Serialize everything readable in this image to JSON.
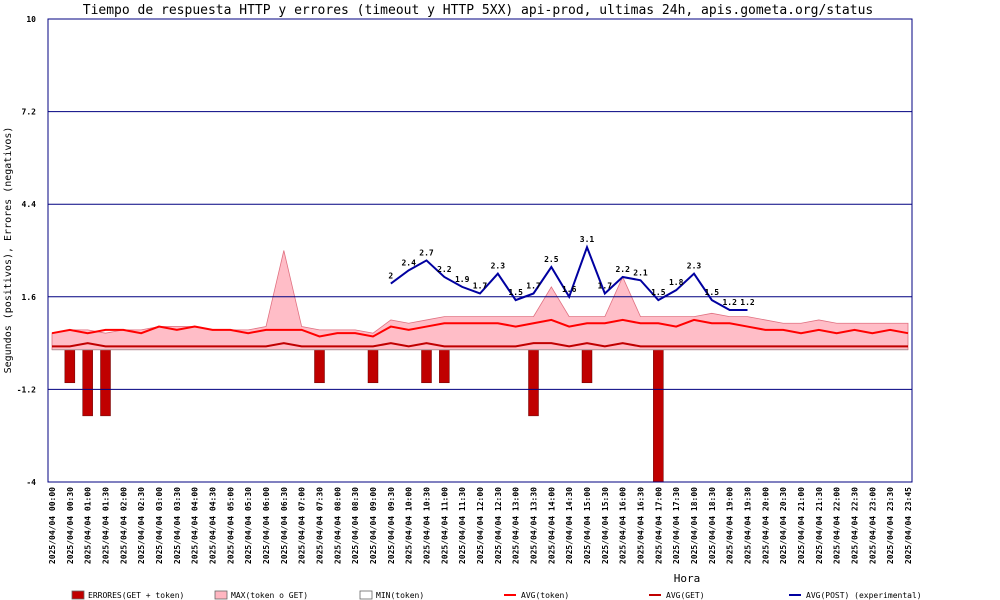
{
  "chart_data": {
    "type": "combo",
    "title": "Tiempo de respuesta HTTP y errores (timeout y HTTP 5XX) api-prod, ultimas 24h, apis.gometa.org/status",
    "x_label": "Hora",
    "y_label": "Segundos (positivos), Errores (negativos)",
    "ylim": [
      -4,
      10
    ],
    "yticks": [
      -4,
      -1.2,
      1.6,
      4.4,
      7.2,
      10
    ],
    "grid": true,
    "categories": [
      "2025/04/04 00:00",
      "2025/04/04 00:30",
      "2025/04/04 01:00",
      "2025/04/04 01:30",
      "2025/04/04 02:00",
      "2025/04/04 02:30",
      "2025/04/04 03:00",
      "2025/04/04 03:30",
      "2025/04/04 04:00",
      "2025/04/04 04:30",
      "2025/04/04 05:00",
      "2025/04/04 05:30",
      "2025/04/04 06:00",
      "2025/04/04 06:30",
      "2025/04/04 07:00",
      "2025/04/04 07:30",
      "2025/04/04 08:00",
      "2025/04/04 08:30",
      "2025/04/04 09:00",
      "2025/04/04 09:30",
      "2025/04/04 10:00",
      "2025/04/04 10:30",
      "2025/04/04 11:00",
      "2025/04/04 11:30",
      "2025/04/04 12:00",
      "2025/04/04 12:30",
      "2025/04/04 13:00",
      "2025/04/04 13:30",
      "2025/04/04 14:00",
      "2025/04/04 14:30",
      "2025/04/04 15:00",
      "2025/04/04 15:30",
      "2025/04/04 16:00",
      "2025/04/04 16:30",
      "2025/04/04 17:00",
      "2025/04/04 17:30",
      "2025/04/04 18:00",
      "2025/04/04 18:30",
      "2025/04/04 19:00",
      "2025/04/04 19:30",
      "2025/04/04 20:00",
      "2025/04/04 20:30",
      "2025/04/04 21:00",
      "2025/04/04 21:30",
      "2025/04/04 22:00",
      "2025/04/04 22:30",
      "2025/04/04 23:00",
      "2025/04/04 23:30",
      "2025/04/04 23:45"
    ],
    "series": [
      {
        "name": "ERRORES(GET + token)",
        "type": "bar",
        "color": "#c00000",
        "values": [
          0,
          -1,
          -2,
          -2,
          0,
          0,
          0,
          0,
          0,
          0,
          0,
          0,
          0,
          0,
          0,
          -1,
          0,
          0,
          -1,
          0,
          0,
          -1,
          -1,
          0,
          0,
          0,
          0,
          -2,
          0,
          0,
          -1,
          0,
          0,
          0,
          -4,
          0,
          0,
          0,
          0,
          0,
          0,
          0,
          0,
          0,
          0,
          0,
          0,
          0,
          0
        ]
      },
      {
        "name": "MAX(token o GET)",
        "type": "area",
        "color": "#ffb6c1",
        "values": [
          0.5,
          0.6,
          0.6,
          0.5,
          0.6,
          0.6,
          0.7,
          0.7,
          0.7,
          0.6,
          0.6,
          0.6,
          0.7,
          3,
          0.7,
          0.6,
          0.6,
          0.6,
          0.5,
          0.9,
          0.8,
          0.9,
          1,
          1,
          1,
          1,
          1,
          1,
          1.9,
          1,
          1,
          1,
          2.2,
          1,
          1,
          1,
          1,
          1.1,
          1,
          1,
          0.9,
          0.8,
          0.8,
          0.9,
          0.8,
          0.8,
          0.8,
          0.8,
          0.8
        ]
      },
      {
        "name": "MIN(token)",
        "type": "area",
        "color": "#ffffff",
        "values": [
          0,
          0,
          0,
          0,
          0,
          0,
          0,
          0,
          0,
          0,
          0,
          0,
          0,
          0,
          0,
          0,
          0,
          0,
          0,
          0,
          0,
          0,
          0,
          0,
          0,
          0,
          0,
          0,
          0,
          0,
          0,
          0,
          0,
          0,
          0,
          0,
          0,
          0,
          0,
          0,
          0,
          0,
          0,
          0,
          0,
          0,
          0,
          0,
          0
        ]
      },
      {
        "name": "AVG(token)",
        "type": "line",
        "color": "#ff0000",
        "values": [
          0.5,
          0.6,
          0.5,
          0.6,
          0.6,
          0.5,
          0.7,
          0.6,
          0.7,
          0.6,
          0.6,
          0.5,
          0.6,
          0.6,
          0.6,
          0.4,
          0.5,
          0.5,
          0.4,
          0.7,
          0.6,
          0.7,
          0.8,
          0.8,
          0.8,
          0.8,
          0.7,
          0.8,
          0.9,
          0.7,
          0.8,
          0.8,
          0.9,
          0.8,
          0.8,
          0.7,
          0.9,
          0.8,
          0.8,
          0.7,
          0.6,
          0.6,
          0.5,
          0.6,
          0.5,
          0.6,
          0.5,
          0.6,
          0.5
        ]
      },
      {
        "name": "AVG(GET)",
        "type": "line",
        "color": "#c00000",
        "values": [
          0.1,
          0.1,
          0.2,
          0.1,
          0.1,
          0.1,
          0.1,
          0.1,
          0.1,
          0.1,
          0.1,
          0.1,
          0.1,
          0.2,
          0.1,
          0.1,
          0.1,
          0.1,
          0.1,
          0.2,
          0.1,
          0.2,
          0.1,
          0.1,
          0.1,
          0.1,
          0.1,
          0.2,
          0.2,
          0.1,
          0.2,
          0.1,
          0.2,
          0.1,
          0.1,
          0.1,
          0.1,
          0.1,
          0.1,
          0.1,
          0.1,
          0.1,
          0.1,
          0.1,
          0.1,
          0.1,
          0.1,
          0.1,
          0.1
        ]
      },
      {
        "name": "AVG(POST) (experimental)",
        "type": "line",
        "color": "#0000a0",
        "point_labels": true,
        "values": [
          null,
          null,
          null,
          null,
          null,
          null,
          null,
          null,
          null,
          null,
          null,
          null,
          null,
          null,
          null,
          null,
          null,
          null,
          null,
          2,
          2.4,
          2.7,
          2.2,
          1.9,
          1.7,
          2.3,
          1.5,
          1.7,
          2.5,
          1.6,
          3.1,
          1.7,
          2.2,
          2.1,
          1.5,
          1.8,
          2.3,
          1.5,
          1.2,
          1.2,
          null,
          null,
          null,
          null,
          null,
          null,
          null,
          null,
          null
        ]
      }
    ]
  }
}
